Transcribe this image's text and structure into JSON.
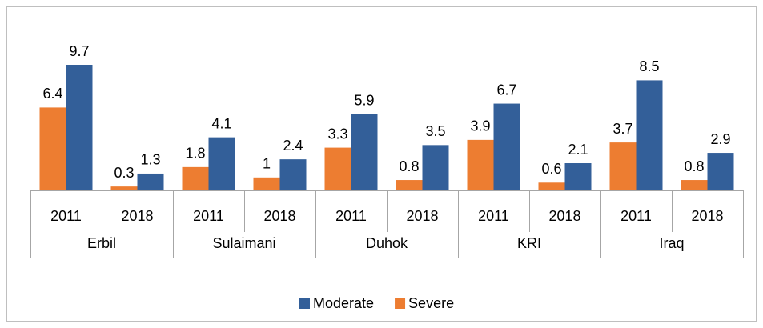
{
  "chart_data": {
    "type": "bar",
    "categories": [
      "2011",
      "2018",
      "2011",
      "2018",
      "2011",
      "2018",
      "2011",
      "2018",
      "2011",
      "2018"
    ],
    "groups": [
      "Erbil",
      "Sulaimani",
      "Duhok",
      "KRI",
      "Iraq"
    ],
    "series": [
      {
        "name": "Severe",
        "color": "#ed7d31",
        "values": [
          6.4,
          0.3,
          1.8,
          1,
          3.3,
          0.8,
          3.9,
          0.6,
          3.7,
          0.8
        ]
      },
      {
        "name": "Moderate",
        "color": "#335f99",
        "values": [
          9.7,
          1.3,
          4.1,
          2.4,
          5.9,
          3.5,
          6.7,
          2.1,
          8.5,
          2.9
        ]
      }
    ],
    "legend": "bottom"
  }
}
